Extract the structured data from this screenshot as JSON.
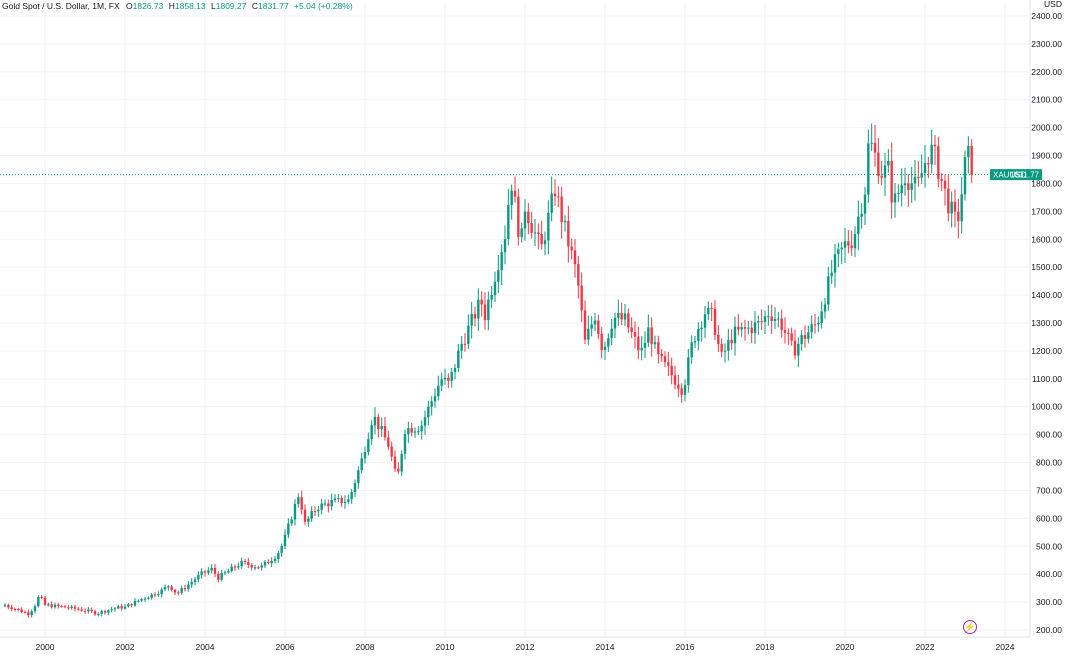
{
  "legend": {
    "symbol": "Gold Spot / U.S. Dollar, 1M, FX",
    "open_label": "O",
    "open": "1826.73",
    "high_label": "H",
    "high": "1858.13",
    "low_label": "L",
    "low": "1809.27",
    "close_label": "C",
    "close": "1831.77",
    "change": "+5.04 (+0.28%)"
  },
  "price_badge": {
    "ticker": "XAUUSD",
    "price": "1831.77"
  },
  "icons": {
    "alert": "lightning-icon"
  },
  "colors": {
    "up": "#089981",
    "down": "#f23645",
    "badge": "#089981",
    "grid": "#f2f3f5",
    "alert": "#9c27b0"
  },
  "chart_data": {
    "type": "candlestick",
    "title": "Gold Spot / U.S. Dollar, 1M, FX",
    "currency": "USD",
    "last_price": 1831.77,
    "ylim": [
      180,
      2420
    ],
    "xlim": [
      1998.75,
      2025.25
    ],
    "yticks": [
      200,
      300,
      400,
      500,
      600,
      700,
      800,
      900,
      1000,
      1100,
      1200,
      1300,
      1400,
      1500,
      1600,
      1700,
      1800,
      1900,
      2000,
      2100,
      2200,
      2300,
      2400
    ],
    "ytick_labels": [
      "200.00",
      "300.00",
      "400.00",
      "500.00",
      "600.00",
      "700.00",
      "800.00",
      "900.00",
      "1000.00",
      "1100.00",
      "1200.00",
      "1300.00",
      "1400.00",
      "1500.00",
      "1600.00",
      "1700.00",
      "1800.00",
      "1900.00",
      "2000.00",
      "2100.00",
      "2200.00",
      "2300.00",
      "2400.00"
    ],
    "xticks": [
      2000,
      2002,
      2004,
      2006,
      2008,
      2010,
      2012,
      2014,
      2016,
      2018,
      2020,
      2022,
      2024
    ],
    "xtick_labels": [
      "2000",
      "2002",
      "2004",
      "2006",
      "2008",
      "2010",
      "2012",
      "2014",
      "2016",
      "2018",
      "2020",
      "2022",
      "2024"
    ],
    "anchors": [
      [
        1999.0,
        289
      ],
      [
        1999.6,
        258
      ],
      [
        1999.8,
        300
      ],
      [
        1999.85,
        324
      ],
      [
        2000.0,
        290
      ],
      [
        2000.6,
        280
      ],
      [
        2001.0,
        270
      ],
      [
        2001.3,
        260
      ],
      [
        2001.8,
        280
      ],
      [
        2002.0,
        282
      ],
      [
        2002.4,
        310
      ],
      [
        2002.9,
        340
      ],
      [
        2003.1,
        360
      ],
      [
        2003.3,
        330
      ],
      [
        2003.9,
        400
      ],
      [
        2004.2,
        420
      ],
      [
        2004.3,
        385
      ],
      [
        2004.9,
        440
      ],
      [
        2005.4,
        425
      ],
      [
        2005.8,
        470
      ],
      [
        2005.95,
        510
      ],
      [
        2006.35,
        690
      ],
      [
        2006.5,
        580
      ],
      [
        2006.8,
        640
      ],
      [
        2007.2,
        660
      ],
      [
        2007.6,
        665
      ],
      [
        2007.9,
        800
      ],
      [
        2008.2,
        970
      ],
      [
        2008.6,
        860
      ],
      [
        2008.8,
        730
      ],
      [
        2009.0,
        920
      ],
      [
        2009.4,
        930
      ],
      [
        2009.9,
        1100
      ],
      [
        2010.1,
        1080
      ],
      [
        2010.4,
        1220
      ],
      [
        2010.9,
        1380
      ],
      [
        2011.0,
        1330
      ],
      [
        2011.5,
        1620
      ],
      [
        2011.65,
        1820
      ],
      [
        2011.9,
        1580
      ],
      [
        2012.0,
        1720
      ],
      [
        2012.4,
        1560
      ],
      [
        2012.75,
        1780
      ],
      [
        2012.95,
        1660
      ],
      [
        2013.3,
        1470
      ],
      [
        2013.5,
        1230
      ],
      [
        2013.75,
        1330
      ],
      [
        2013.95,
        1200
      ],
      [
        2014.2,
        1320
      ],
      [
        2014.5,
        1310
      ],
      [
        2014.9,
        1190
      ],
      [
        2015.1,
        1280
      ],
      [
        2015.3,
        1180
      ],
      [
        2015.8,
        1090
      ],
      [
        2015.95,
        1060
      ],
      [
        2016.2,
        1240
      ],
      [
        2016.5,
        1340
      ],
      [
        2016.7,
        1320
      ],
      [
        2016.9,
        1170
      ],
      [
        2017.2,
        1260
      ],
      [
        2017.6,
        1280
      ],
      [
        2017.9,
        1300
      ],
      [
        2018.1,
        1340
      ],
      [
        2018.4,
        1300
      ],
      [
        2018.7,
        1200
      ],
      [
        2018.9,
        1240
      ],
      [
        2019.3,
        1300
      ],
      [
        2019.55,
        1420
      ],
      [
        2019.7,
        1500
      ],
      [
        2020.0,
        1580
      ],
      [
        2020.2,
        1600
      ],
      [
        2020.5,
        1780
      ],
      [
        2020.6,
        1960
      ],
      [
        2020.9,
        1840
      ],
      [
        2021.1,
        1850
      ],
      [
        2021.2,
        1720
      ],
      [
        2021.5,
        1830
      ],
      [
        2021.8,
        1780
      ],
      [
        2022.05,
        1900
      ],
      [
        2022.2,
        1920
      ],
      [
        2022.55,
        1740
      ],
      [
        2022.8,
        1650
      ],
      [
        2022.95,
        1800
      ],
      [
        2023.05,
        1930
      ],
      [
        2023.15,
        1831
      ]
    ]
  }
}
